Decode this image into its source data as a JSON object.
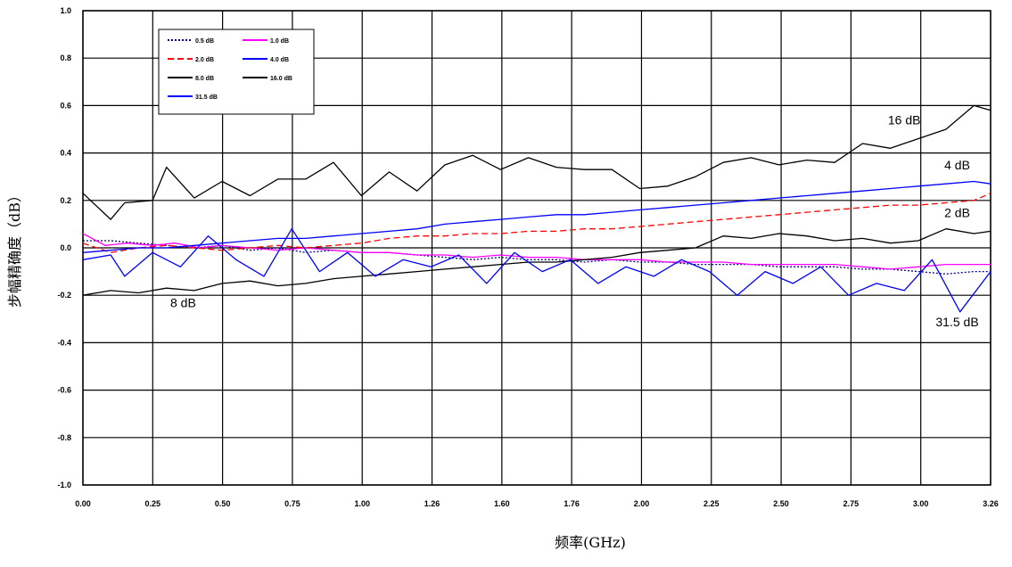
{
  "chart_data": {
    "type": "line",
    "title": "",
    "xlabel": "频率(GHz)",
    "ylabel": "步幅精确度（dB）",
    "xlim": [
      0,
      3.26
    ],
    "ylim": [
      -1.0,
      1.0
    ],
    "grid": true,
    "legend_position": "top-left",
    "x_ticks": [
      "0.00",
      "0.25",
      "0.50",
      "0.75",
      "1.00",
      "1.26",
      "1.60",
      "1.76",
      "2.00",
      "2.25",
      "2.50",
      "2.75",
      "3.00",
      "3.26"
    ],
    "y_ticks": [
      "1.0",
      "0.8",
      "0.6",
      "0.4",
      "0.2",
      "0.0",
      "-0.2",
      "-0.4",
      "-0.6",
      "-0.8",
      "-1.0"
    ],
    "series": [
      {
        "name": "0.5 dB",
        "color": "#000080",
        "style": "dotted",
        "points": [
          [
            0,
            0.03
          ],
          [
            0.1,
            0.03
          ],
          [
            0.2,
            0.02
          ],
          [
            0.3,
            0.01
          ],
          [
            0.4,
            0.0
          ],
          [
            0.5,
            0.01
          ],
          [
            0.6,
            -0.01
          ],
          [
            0.7,
            0.0
          ],
          [
            0.8,
            -0.02
          ],
          [
            0.9,
            -0.01
          ],
          [
            1.0,
            -0.02
          ],
          [
            1.1,
            -0.02
          ],
          [
            1.2,
            -0.03
          ],
          [
            1.3,
            -0.04
          ],
          [
            1.4,
            -0.05
          ],
          [
            1.5,
            -0.04
          ],
          [
            1.6,
            -0.05
          ],
          [
            1.7,
            -0.05
          ],
          [
            1.8,
            -0.06
          ],
          [
            1.9,
            -0.05
          ],
          [
            2.0,
            -0.06
          ],
          [
            2.1,
            -0.06
          ],
          [
            2.2,
            -0.07
          ],
          [
            2.3,
            -0.07
          ],
          [
            2.4,
            -0.07
          ],
          [
            2.5,
            -0.08
          ],
          [
            2.6,
            -0.08
          ],
          [
            2.7,
            -0.08
          ],
          [
            2.8,
            -0.09
          ],
          [
            2.9,
            -0.09
          ],
          [
            3.0,
            -0.1
          ],
          [
            3.1,
            -0.11
          ],
          [
            3.2,
            -0.1
          ],
          [
            3.26,
            -0.1
          ]
        ]
      },
      {
        "name": "1.0 dB",
        "color": "#ff00ff",
        "style": "solid",
        "points": [
          [
            0,
            0.06
          ],
          [
            0.08,
            0.01
          ],
          [
            0.16,
            0.02
          ],
          [
            0.25,
            0.01
          ],
          [
            0.33,
            0.02
          ],
          [
            0.42,
            0.0
          ],
          [
            0.5,
            0.01
          ],
          [
            0.6,
            0.0
          ],
          [
            0.7,
            -0.01
          ],
          [
            0.8,
            0.0
          ],
          [
            0.9,
            -0.01
          ],
          [
            1.0,
            -0.02
          ],
          [
            1.1,
            -0.02
          ],
          [
            1.2,
            -0.03
          ],
          [
            1.3,
            -0.03
          ],
          [
            1.4,
            -0.04
          ],
          [
            1.5,
            -0.03
          ],
          [
            1.6,
            -0.04
          ],
          [
            1.7,
            -0.04
          ],
          [
            1.8,
            -0.05
          ],
          [
            1.9,
            -0.05
          ],
          [
            2.0,
            -0.05
          ],
          [
            2.1,
            -0.06
          ],
          [
            2.2,
            -0.06
          ],
          [
            2.3,
            -0.06
          ],
          [
            2.4,
            -0.07
          ],
          [
            2.5,
            -0.07
          ],
          [
            2.6,
            -0.07
          ],
          [
            2.7,
            -0.07
          ],
          [
            2.8,
            -0.08
          ],
          [
            2.9,
            -0.09
          ],
          [
            3.0,
            -0.08
          ],
          [
            3.1,
            -0.07
          ],
          [
            3.2,
            -0.07
          ],
          [
            3.26,
            -0.07
          ]
        ]
      },
      {
        "name": "2.0 dB",
        "color": "#ff0000",
        "style": "dashed",
        "points": [
          [
            0,
            0.02
          ],
          [
            0.1,
            -0.02
          ],
          [
            0.2,
            0.0
          ],
          [
            0.3,
            0.01
          ],
          [
            0.4,
            0.0
          ],
          [
            0.5,
            -0.01
          ],
          [
            0.6,
            0.0
          ],
          [
            0.7,
            0.01
          ],
          [
            0.8,
            0.0
          ],
          [
            0.9,
            0.01
          ],
          [
            1.0,
            0.02
          ],
          [
            1.1,
            0.04
          ],
          [
            1.2,
            0.05
          ],
          [
            1.3,
            0.05
          ],
          [
            1.4,
            0.06
          ],
          [
            1.5,
            0.06
          ],
          [
            1.6,
            0.07
          ],
          [
            1.7,
            0.07
          ],
          [
            1.8,
            0.08
          ],
          [
            1.9,
            0.08
          ],
          [
            2.0,
            0.09
          ],
          [
            2.1,
            0.1
          ],
          [
            2.2,
            0.11
          ],
          [
            2.3,
            0.12
          ],
          [
            2.4,
            0.13
          ],
          [
            2.5,
            0.14
          ],
          [
            2.6,
            0.15
          ],
          [
            2.7,
            0.16
          ],
          [
            2.8,
            0.17
          ],
          [
            2.9,
            0.18
          ],
          [
            3.0,
            0.18
          ],
          [
            3.1,
            0.19
          ],
          [
            3.2,
            0.2
          ],
          [
            3.26,
            0.23
          ]
        ]
      },
      {
        "name": "4.0 dB",
        "color": "#0000ff",
        "style": "solid",
        "points": [
          [
            0,
            -0.02
          ],
          [
            0.1,
            -0.01
          ],
          [
            0.2,
            0.0
          ],
          [
            0.3,
            0.0
          ],
          [
            0.4,
            0.01
          ],
          [
            0.5,
            0.02
          ],
          [
            0.6,
            0.03
          ],
          [
            0.7,
            0.04
          ],
          [
            0.8,
            0.04
          ],
          [
            0.9,
            0.05
          ],
          [
            1.0,
            0.06
          ],
          [
            1.1,
            0.07
          ],
          [
            1.2,
            0.08
          ],
          [
            1.3,
            0.1
          ],
          [
            1.4,
            0.11
          ],
          [
            1.5,
            0.12
          ],
          [
            1.6,
            0.13
          ],
          [
            1.7,
            0.14
          ],
          [
            1.8,
            0.14
          ],
          [
            1.9,
            0.15
          ],
          [
            2.0,
            0.16
          ],
          [
            2.1,
            0.17
          ],
          [
            2.2,
            0.18
          ],
          [
            2.3,
            0.19
          ],
          [
            2.4,
            0.2
          ],
          [
            2.5,
            0.21
          ],
          [
            2.6,
            0.22
          ],
          [
            2.7,
            0.23
          ],
          [
            2.8,
            0.24
          ],
          [
            2.9,
            0.25
          ],
          [
            3.0,
            0.26
          ],
          [
            3.1,
            0.27
          ],
          [
            3.2,
            0.28
          ],
          [
            3.26,
            0.27
          ]
        ]
      },
      {
        "name": "8.0 dB",
        "color": "#000000",
        "style": "solid",
        "points": [
          [
            0,
            -0.2
          ],
          [
            0.1,
            -0.18
          ],
          [
            0.2,
            -0.19
          ],
          [
            0.3,
            -0.17
          ],
          [
            0.4,
            -0.18
          ],
          [
            0.5,
            -0.15
          ],
          [
            0.6,
            -0.14
          ],
          [
            0.7,
            -0.16
          ],
          [
            0.8,
            -0.15
          ],
          [
            0.9,
            -0.13
          ],
          [
            1.0,
            -0.12
          ],
          [
            1.1,
            -0.11
          ],
          [
            1.2,
            -0.1
          ],
          [
            1.3,
            -0.09
          ],
          [
            1.4,
            -0.08
          ],
          [
            1.5,
            -0.07
          ],
          [
            1.6,
            -0.06
          ],
          [
            1.7,
            -0.06
          ],
          [
            1.8,
            -0.05
          ],
          [
            1.9,
            -0.04
          ],
          [
            2.0,
            -0.02
          ],
          [
            2.1,
            -0.01
          ],
          [
            2.2,
            0.0
          ],
          [
            2.3,
            0.05
          ],
          [
            2.4,
            0.04
          ],
          [
            2.5,
            0.06
          ],
          [
            2.6,
            0.05
          ],
          [
            2.7,
            0.03
          ],
          [
            2.8,
            0.04
          ],
          [
            2.9,
            0.02
          ],
          [
            3.0,
            0.03
          ],
          [
            3.1,
            0.08
          ],
          [
            3.2,
            0.06
          ],
          [
            3.26,
            0.07
          ]
        ]
      },
      {
        "name": "16.0 dB",
        "color": "#000000",
        "style": "solid",
        "points": [
          [
            0,
            0.23
          ],
          [
            0.1,
            0.12
          ],
          [
            0.15,
            0.19
          ],
          [
            0.25,
            0.2
          ],
          [
            0.3,
            0.34
          ],
          [
            0.4,
            0.21
          ],
          [
            0.5,
            0.28
          ],
          [
            0.6,
            0.22
          ],
          [
            0.7,
            0.29
          ],
          [
            0.8,
            0.29
          ],
          [
            0.9,
            0.36
          ],
          [
            1.0,
            0.22
          ],
          [
            1.1,
            0.32
          ],
          [
            1.2,
            0.24
          ],
          [
            1.3,
            0.35
          ],
          [
            1.4,
            0.39
          ],
          [
            1.5,
            0.33
          ],
          [
            1.6,
            0.38
          ],
          [
            1.7,
            0.34
          ],
          [
            1.8,
            0.33
          ],
          [
            1.9,
            0.33
          ],
          [
            2.0,
            0.25
          ],
          [
            2.1,
            0.26
          ],
          [
            2.2,
            0.3
          ],
          [
            2.3,
            0.36
          ],
          [
            2.4,
            0.38
          ],
          [
            2.5,
            0.35
          ],
          [
            2.6,
            0.37
          ],
          [
            2.7,
            0.36
          ],
          [
            2.8,
            0.44
          ],
          [
            2.9,
            0.42
          ],
          [
            3.0,
            0.46
          ],
          [
            3.1,
            0.5
          ],
          [
            3.2,
            0.6
          ],
          [
            3.26,
            0.58
          ]
        ]
      },
      {
        "name": "31.5 dB",
        "color": "#0000ff",
        "style": "solid",
        "points": [
          [
            0,
            -0.05
          ],
          [
            0.1,
            -0.03
          ],
          [
            0.15,
            -0.12
          ],
          [
            0.25,
            -0.02
          ],
          [
            0.35,
            -0.08
          ],
          [
            0.45,
            0.05
          ],
          [
            0.55,
            -0.05
          ],
          [
            0.65,
            -0.12
          ],
          [
            0.75,
            0.08
          ],
          [
            0.85,
            -0.1
          ],
          [
            0.95,
            -0.02
          ],
          [
            1.05,
            -0.12
          ],
          [
            1.15,
            -0.05
          ],
          [
            1.25,
            -0.08
          ],
          [
            1.35,
            -0.03
          ],
          [
            1.45,
            -0.15
          ],
          [
            1.55,
            -0.02
          ],
          [
            1.65,
            -0.1
          ],
          [
            1.75,
            -0.05
          ],
          [
            1.85,
            -0.15
          ],
          [
            1.95,
            -0.08
          ],
          [
            2.05,
            -0.12
          ],
          [
            2.15,
            -0.05
          ],
          [
            2.25,
            -0.1
          ],
          [
            2.35,
            -0.2
          ],
          [
            2.45,
            -0.1
          ],
          [
            2.55,
            -0.15
          ],
          [
            2.65,
            -0.08
          ],
          [
            2.75,
            -0.2
          ],
          [
            2.85,
            -0.15
          ],
          [
            2.95,
            -0.18
          ],
          [
            3.05,
            -0.05
          ],
          [
            3.15,
            -0.27
          ],
          [
            3.26,
            -0.1
          ]
        ]
      }
    ],
    "annotations": [
      {
        "text": "16 dB",
        "x": 2.95,
        "y": 0.52
      },
      {
        "text": "4 dB",
        "x": 3.14,
        "y": 0.33
      },
      {
        "text": "2 dB",
        "x": 3.14,
        "y": 0.13
      },
      {
        "text": "8 dB",
        "x": 0.36,
        "y": -0.25
      },
      {
        "text": "31.5 dB",
        "x": 3.14,
        "y": -0.33
      }
    ]
  }
}
